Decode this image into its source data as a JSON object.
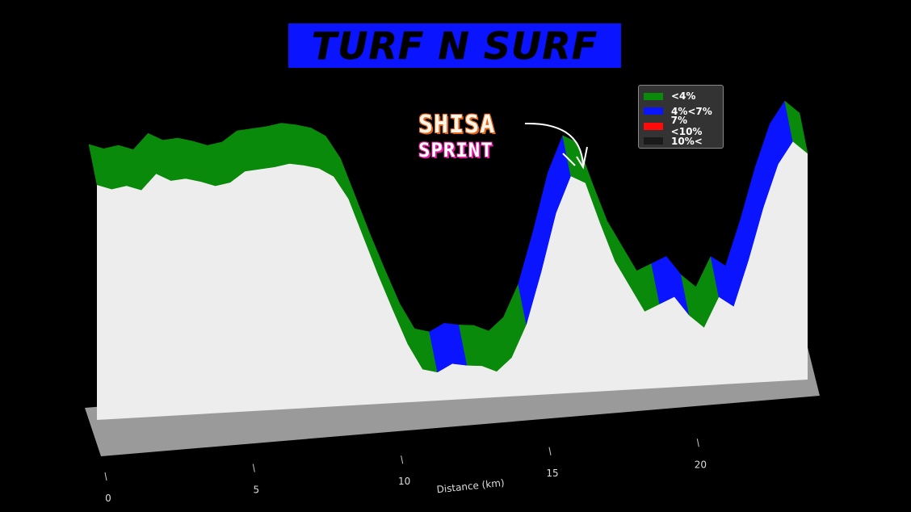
{
  "title": "TURF N SURF",
  "annotation": {
    "line1": "SHISA",
    "line2": "SPRINT"
  },
  "chart_data": {
    "type": "area",
    "xlabel": "Distance (km)",
    "ylabel": "",
    "xlim": [
      0,
      24
    ],
    "xticks": [
      0,
      5,
      10,
      15,
      20
    ],
    "legend_position": "top-right",
    "legend": [
      {
        "label": "<4%",
        "color": "#0a8a0a"
      },
      {
        "label": "4%<7%",
        "color": "#0a14ff"
      },
      {
        "label": "7%<10%",
        "color": "#ff0a0a"
      },
      {
        "label": "10%<",
        "color": "#1a1a1a"
      }
    ],
    "elevation_profile": {
      "distance_km": [
        0,
        0.5,
        1,
        1.5,
        2,
        2.5,
        3,
        3.5,
        4,
        4.5,
        5,
        5.5,
        6,
        6.5,
        7,
        7.5,
        8,
        8.5,
        9,
        9.5,
        10,
        10.5,
        11,
        11.5,
        12,
        12.5,
        13,
        13.5,
        14,
        14.5,
        15,
        15.5,
        16,
        16.5,
        17,
        17.5,
        18,
        18.5,
        19,
        19.5,
        20,
        20.5,
        21,
        21.5,
        22,
        22.5,
        23,
        23.5,
        24
      ],
      "elevation_m": [
        182,
        178,
        180,
        176,
        188,
        182,
        183,
        180,
        176,
        178,
        186,
        187,
        188,
        190,
        188,
        185,
        178,
        160,
        130,
        100,
        72,
        45,
        25,
        22,
        28,
        26,
        25,
        20,
        30,
        55,
        95,
        140,
        168,
        162,
        130,
        100,
        80,
        60,
        65,
        70,
        55,
        45,
        68,
        60,
        95,
        135,
        168,
        185,
        175
      ],
      "gradient_class": [
        0,
        0,
        0,
        0,
        0,
        0,
        0,
        0,
        0,
        0,
        0,
        0,
        0,
        0,
        0,
        0,
        0,
        0,
        0,
        0,
        0,
        0,
        0,
        1,
        1,
        0,
        0,
        0,
        0,
        1,
        1,
        1,
        0,
        0,
        0,
        0,
        0,
        0,
        1,
        1,
        0,
        0,
        1,
        1,
        1,
        1,
        1,
        0,
        0
      ]
    }
  }
}
